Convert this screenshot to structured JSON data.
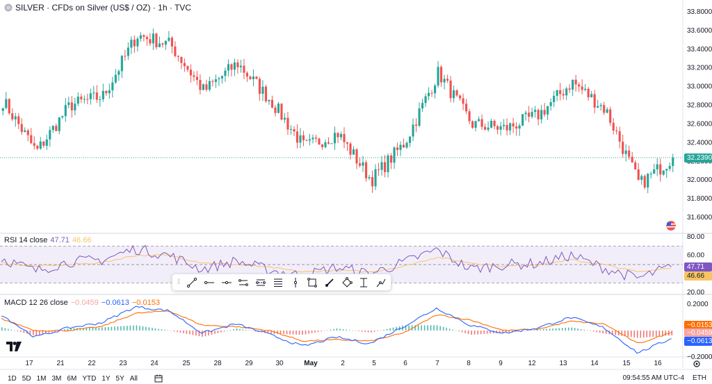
{
  "header": {
    "symbol_title": "SILVER · CFDs on Silver (US$ / OZ) · 1h · TVC"
  },
  "price_axis": {
    "ticks": [
      "33.8000",
      "33.6000",
      "33.4000",
      "33.2000",
      "33.0000",
      "32.8000",
      "32.6000",
      "32.4000",
      "32.2000",
      "32.0000",
      "31.8000",
      "31.6000"
    ],
    "last_price": "32.2390"
  },
  "rsi": {
    "label": "RSI 14 close",
    "value": "47.71",
    "ma_value": "46.66",
    "ticks": [
      "80.00",
      "60.00",
      "20.00"
    ]
  },
  "macd": {
    "label": "MACD 12 26 close",
    "hist": "−0.0459",
    "macd": "−0.0613",
    "signal": "−0.0153",
    "ticks": [
      "0.2000",
      "0.0000",
      "−0.2000"
    ]
  },
  "time_axis": {
    "ticks": [
      "17",
      "21",
      "22",
      "23",
      "24",
      "25",
      "28",
      "29",
      "30",
      "May",
      "2",
      "5",
      "6",
      "7",
      "8",
      "9",
      "12",
      "13",
      "14",
      "15",
      "16"
    ]
  },
  "range_buttons": [
    "1D",
    "5D",
    "1M",
    "3M",
    "6M",
    "YTD",
    "1Y",
    "5Y",
    "All"
  ],
  "status": {
    "clock": "09:54:55 AM UTC-4",
    "session": "ETH"
  },
  "drawing_tools": [
    "trend-line",
    "horizontal-ray",
    "horizontal-line",
    "parallel-channel",
    "regression-channel",
    "fib-retracement",
    "vertical-line",
    "rectangle",
    "brush",
    "rotated-rectangle",
    "date-range",
    "path"
  ],
  "colors": {
    "up": "#26a69a",
    "down": "#ef5350",
    "rsi_line": "#7e57c2",
    "rsi_ma": "#f7c465",
    "macd_line": "#2962ff",
    "signal_line": "#ff6d00",
    "last_price_tag": "#26a69a"
  },
  "chart_data": [
    {
      "type": "candlestick",
      "title": "SILVER · CFDs on Silver (US$ / OZ) · 1h · TVC",
      "ylim": [
        31.5,
        33.85
      ],
      "x": [
        "17",
        "21",
        "22",
        "23",
        "24",
        "25",
        "28",
        "29",
        "30",
        "May",
        "2",
        "5",
        "6",
        "7",
        "8",
        "9",
        "12",
        "13",
        "14",
        "15",
        "16"
      ],
      "close": [
        32.85,
        32.3,
        32.8,
        32.9,
        33.55,
        33.45,
        32.95,
        33.25,
        32.85,
        32.35,
        32.5,
        32.0,
        32.4,
        33.15,
        32.6,
        32.55,
        32.7,
        33.05,
        32.75,
        31.95,
        32.24
      ],
      "last": 32.239
    },
    {
      "type": "line",
      "title": "RSI 14 close",
      "ylim": [
        20,
        80
      ],
      "series": [
        {
          "name": "RSI",
          "values": [
            57,
            43,
            53,
            55,
            67,
            60,
            45,
            54,
            44,
            38,
            47,
            40,
            52,
            66,
            45,
            50,
            51,
            60,
            46,
            35,
            47.71
          ]
        },
        {
          "name": "MA",
          "values": [
            52,
            48,
            50,
            52,
            60,
            60,
            52,
            50,
            47,
            42,
            44,
            42,
            48,
            58,
            52,
            48,
            50,
            55,
            50,
            42,
            46.66
          ]
        }
      ]
    },
    {
      "type": "line",
      "title": "MACD 12 26 close",
      "ylim": [
        -0.25,
        0.25
      ],
      "series": [
        {
          "name": "MACD",
          "values": [
            0.12,
            -0.05,
            0.02,
            0.06,
            0.18,
            0.15,
            -0.02,
            0.05,
            -0.03,
            -0.12,
            -0.05,
            -0.1,
            0.03,
            0.17,
            0.04,
            -0.02,
            0.02,
            0.1,
            0.02,
            -0.17,
            -0.0613
          ]
        },
        {
          "name": "Signal",
          "values": [
            0.09,
            0.0,
            0.0,
            0.03,
            0.13,
            0.15,
            0.04,
            0.03,
            0.0,
            -0.08,
            -0.07,
            -0.08,
            -0.02,
            0.12,
            0.08,
            0.0,
            0.01,
            0.07,
            0.05,
            -0.1,
            -0.0153
          ]
        }
      ]
    }
  ]
}
